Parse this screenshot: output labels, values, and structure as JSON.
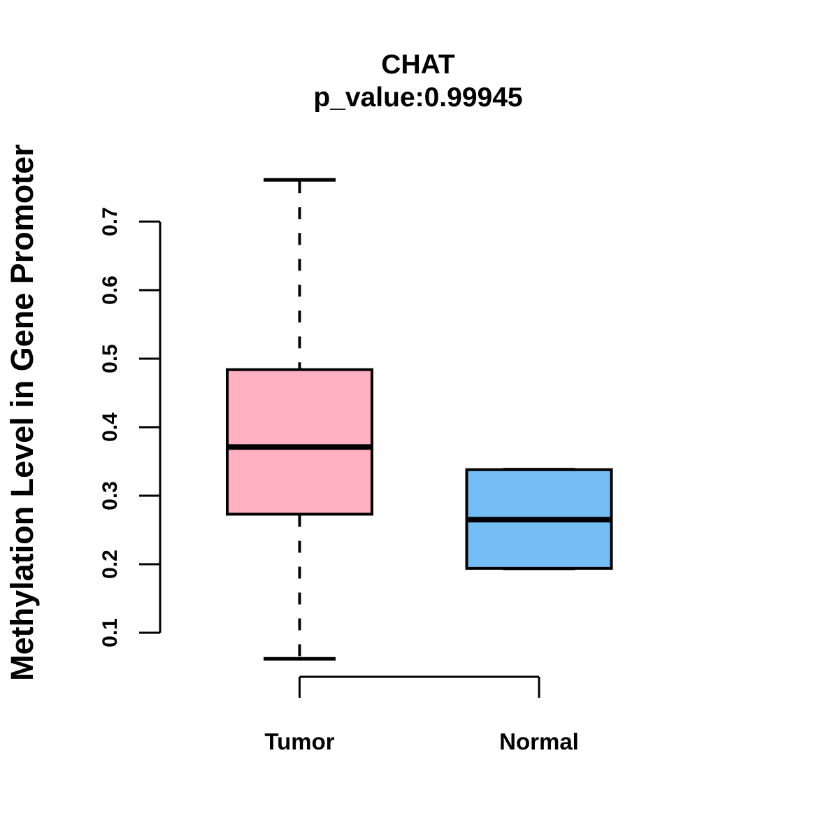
{
  "page": {
    "background": "#ffffff"
  },
  "chart_data": {
    "type": "boxplot",
    "title": "CHAT",
    "subtitle": "p_value:0.99945",
    "ylabel": "Methylation Level in Gene Promoter",
    "xlabel": "",
    "ylim": [
      0.1,
      0.7
    ],
    "ytick_labels": [
      "0.1",
      "0.2",
      "0.3",
      "0.4",
      "0.5",
      "0.6",
      "0.7"
    ],
    "grid": false,
    "legend": "none",
    "categories": [
      "Tumor",
      "Normal"
    ],
    "series": [
      {
        "name": "Tumor",
        "fill": "#FFB0C1",
        "whisker_low": 0.062,
        "q1": 0.273,
        "median": 0.371,
        "q3": 0.484,
        "whisker_high": 0.761
      },
      {
        "name": "Normal",
        "fill": "#75BDF5",
        "whisker_low": 0.194,
        "q1": 0.194,
        "median": 0.265,
        "q3": 0.338,
        "whisker_high": 0.338
      }
    ],
    "stroke_color": "#000000"
  }
}
